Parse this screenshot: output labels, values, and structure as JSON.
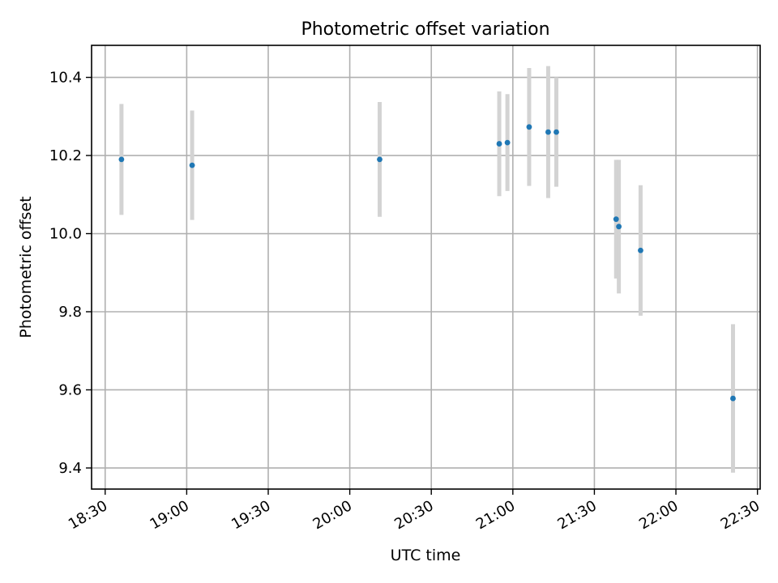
{
  "chart_data": {
    "type": "scatter",
    "title": "Photometric offset variation",
    "xlabel": "UTC time",
    "ylabel": "Photometric offset",
    "grid": true,
    "x_tick_labels": [
      "18:30",
      "19:00",
      "19:30",
      "20:00",
      "20:30",
      "21:00",
      "21:30",
      "22:00",
      "22:30"
    ],
    "x_tick_times": [
      "18:30",
      "19:00",
      "19:30",
      "20:00",
      "20:30",
      "21:00",
      "21:30",
      "22:00",
      "22:30"
    ],
    "y_tick_labels": [
      "9.4",
      "9.6",
      "9.8",
      "10.0",
      "10.2",
      "10.4"
    ],
    "y_tick_values": [
      9.4,
      9.6,
      9.8,
      10.0,
      10.2,
      10.4
    ],
    "xlim": [
      "18:25",
      "22:31"
    ],
    "ylim": [
      9.346,
      10.482
    ],
    "marker_color": "#1f77b4",
    "errorbar_color": "#d3d3d3",
    "points": [
      {
        "time": "18:36",
        "y": 10.19,
        "err": 0.142
      },
      {
        "time": "19:02",
        "y": 10.175,
        "err": 0.14
      },
      {
        "time": "20:11",
        "y": 10.19,
        "err": 0.147
      },
      {
        "time": "20:55",
        "y": 10.23,
        "err": 0.134
      },
      {
        "time": "20:58",
        "y": 10.233,
        "err": 0.124
      },
      {
        "time": "21:06",
        "y": 10.273,
        "err": 0.151
      },
      {
        "time": "21:13",
        "y": 10.26,
        "err": 0.169
      },
      {
        "time": "21:16",
        "y": 10.26,
        "err": 0.14
      },
      {
        "time": "21:38",
        "y": 10.037,
        "err": 0.152
      },
      {
        "time": "21:39",
        "y": 10.018,
        "err": 0.171
      },
      {
        "time": "21:47",
        "y": 9.957,
        "err": 0.167
      },
      {
        "time": "22:21",
        "y": 9.578,
        "err": 0.19
      }
    ]
  }
}
